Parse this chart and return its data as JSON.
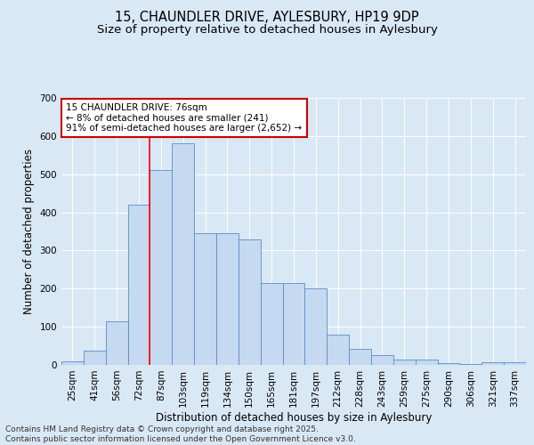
{
  "title_line1": "15, CHAUNDLER DRIVE, AYLESBURY, HP19 9DP",
  "title_line2": "Size of property relative to detached houses in Aylesbury",
  "xlabel": "Distribution of detached houses by size in Aylesbury",
  "ylabel": "Number of detached properties",
  "categories": [
    "25sqm",
    "41sqm",
    "56sqm",
    "72sqm",
    "87sqm",
    "103sqm",
    "119sqm",
    "134sqm",
    "150sqm",
    "165sqm",
    "181sqm",
    "197sqm",
    "212sqm",
    "228sqm",
    "243sqm",
    "259sqm",
    "275sqm",
    "290sqm",
    "306sqm",
    "321sqm",
    "337sqm"
  ],
  "values": [
    10,
    38,
    115,
    420,
    510,
    580,
    345,
    345,
    330,
    215,
    215,
    200,
    80,
    42,
    25,
    14,
    14,
    5,
    2,
    7,
    7
  ],
  "bar_color": "#c5d9f0",
  "bar_edge_color": "#5b8dc8",
  "red_line_x": 3.5,
  "annotation_text": "15 CHAUNDLER DRIVE: 76sqm\n← 8% of detached houses are smaller (241)\n91% of semi-detached houses are larger (2,652) →",
  "annotation_box_facecolor": "#ffffff",
  "annotation_box_edgecolor": "#cc0000",
  "ylim": [
    0,
    700
  ],
  "yticks": [
    0,
    100,
    200,
    300,
    400,
    500,
    600,
    700
  ],
  "background_color": "#d9e8f5",
  "grid_color": "#ffffff",
  "footer_line1": "Contains HM Land Registry data © Crown copyright and database right 2025.",
  "footer_line2": "Contains public sector information licensed under the Open Government Licence v3.0.",
  "title_fontsize": 10.5,
  "subtitle_fontsize": 9.5,
  "ylabel_fontsize": 8.5,
  "xlabel_fontsize": 8.5,
  "tick_fontsize": 7.5,
  "annotation_fontsize": 7.5,
  "footer_fontsize": 6.5
}
